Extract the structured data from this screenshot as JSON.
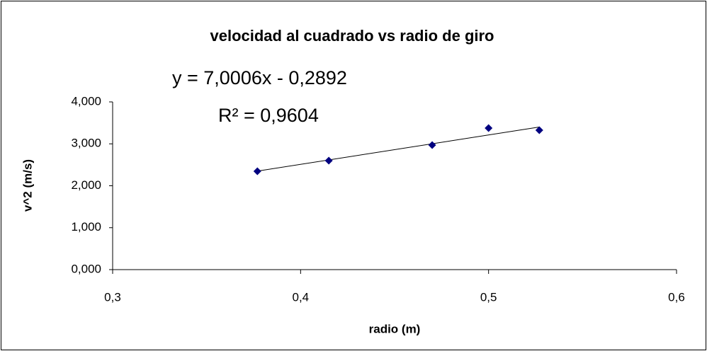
{
  "chart_data": {
    "type": "scatter",
    "title": "velocidad al cuadrado vs radio de giro",
    "xlabel": "radio (m)",
    "ylabel": "v^2 (m/s)",
    "x": [
      0.377,
      0.415,
      0.47,
      0.5,
      0.527
    ],
    "values": [
      2.346,
      2.6,
      2.97,
      3.376,
      3.325
    ],
    "color": "#000080",
    "xlim": [
      0.3,
      0.6
    ],
    "xticks": [
      {
        "value": 0.3,
        "label": "0,3"
      },
      {
        "value": 0.4,
        "label": "0,4"
      },
      {
        "value": 0.5,
        "label": "0,5"
      },
      {
        "value": 0.6,
        "label": "0,6"
      }
    ],
    "ylim": [
      0,
      4
    ],
    "yticks": [
      {
        "value": 0,
        "label": "0,000"
      },
      {
        "value": 1,
        "label": "1,000"
      },
      {
        "value": 2,
        "label": "2,000"
      },
      {
        "value": 3,
        "label": "3,000"
      },
      {
        "value": 4,
        "label": "4,000"
      }
    ],
    "grid": false,
    "trendline": {
      "slope": 7.0006,
      "intercept": -0.2892,
      "equation": "y = 7,0006x - 0,2892",
      "r_squared": "R² = 0,9604"
    }
  }
}
